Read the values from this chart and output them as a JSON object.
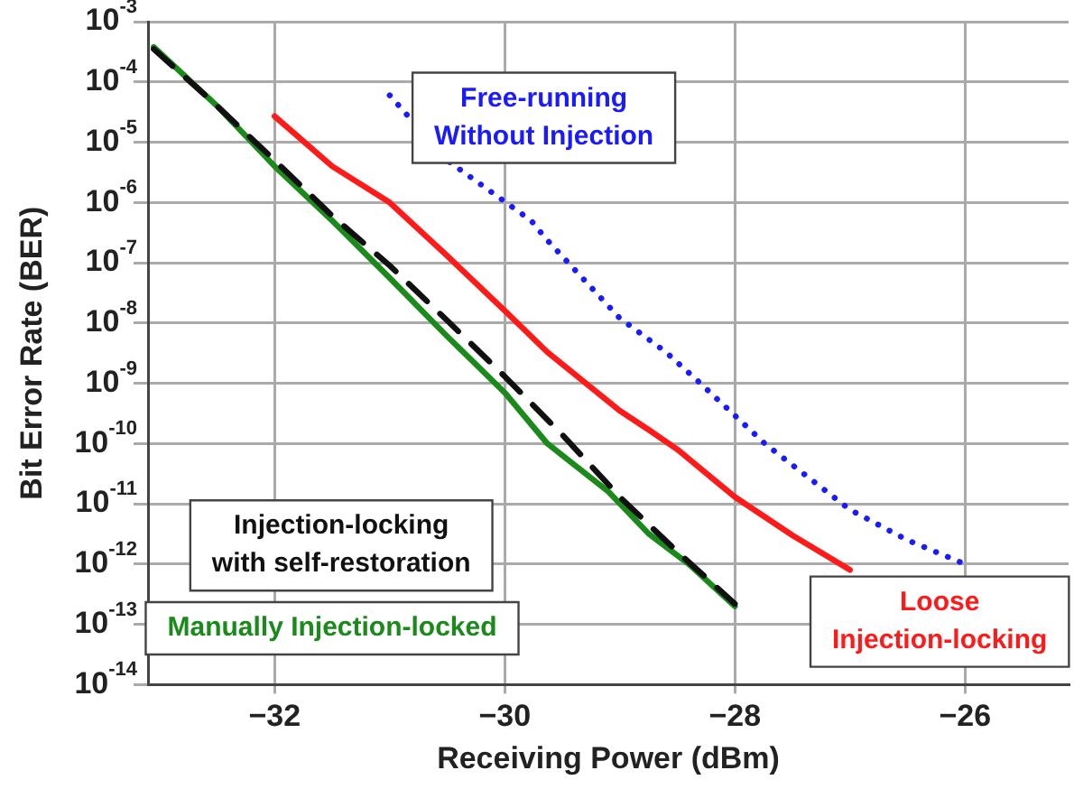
{
  "chart_data": {
    "type": "line",
    "xlabel": "Receiving Power (dBm)",
    "ylabel": "Bit Error Rate (BER)",
    "log": "y",
    "grid": true,
    "legend": false,
    "marker": "none",
    "xlim": [
      -33.1,
      -25.1
    ],
    "xticks": [
      -32,
      -30,
      -28,
      -26
    ],
    "ylim": [
      1e-14,
      0.001
    ],
    "yticks": [
      {
        "value": 1e-14,
        "label": "10$^{-14}$"
      },
      {
        "value": 1e-13,
        "label": "10$^{-13}$"
      },
      {
        "value": 1e-12,
        "label": "10$^{-12}$"
      },
      {
        "value": 1e-11,
        "label": "10$^{-11}$"
      },
      {
        "value": 1e-10,
        "label": "10$^{-10}$"
      },
      {
        "value": 1e-09,
        "label": "10$^{-9}$"
      },
      {
        "value": 1e-08,
        "label": "10$^{-8}$"
      },
      {
        "value": 1e-07,
        "label": "10$^{-7}$"
      },
      {
        "value": 1e-06,
        "label": "10$^{-6}$"
      },
      {
        "value": 1e-05,
        "label": "10$^{-5}$"
      },
      {
        "value": 0.0001,
        "label": "10$^{-4}$"
      },
      {
        "value": 0.001,
        "label": "10$^{-3}$"
      }
    ],
    "series": [
      {
        "name": "Free-running Without Injection",
        "color": "#1a1aff",
        "line_style": "dotted",
        "x": [
          -31,
          -30.5,
          -29.77,
          -29.65,
          -29,
          -28.6,
          -28.3,
          -27.74,
          -27,
          -26.5,
          -26
        ],
        "values": [
          6e-05,
          5e-06,
          5e-07,
          2.6e-07,
          1.2e-08,
          3.3e-09,
          1e-09,
          1e-10,
          8e-12,
          2.5e-12,
          1e-12
        ]
      },
      {
        "name": "Loose Injection-locking",
        "color": "#ff1a1a",
        "line_style": "solid",
        "x": [
          -32,
          -31.5,
          -31,
          -30.5,
          -30,
          -29.63,
          -29,
          -28.75,
          -28.5,
          -28,
          -27.5,
          -27
        ],
        "values": [
          2.7e-05,
          4e-06,
          1e-06,
          1.3e-07,
          1.6e-08,
          3.3e-09,
          3.5e-10,
          1.7e-10,
          8e-11,
          1.3e-11,
          3e-12,
          8e-13
        ]
      },
      {
        "name": "Injection-locking with self-restoration",
        "color": "#111111",
        "line_style": "dashed",
        "x": [
          -33.05,
          -32.5,
          -32,
          -31.5,
          -31,
          -30.5,
          -30,
          -29.5,
          -29,
          -28.5,
          -28
        ],
        "values": [
          0.00035,
          4e-05,
          5e-06,
          6e-07,
          9e-08,
          1.1e-08,
          1.3e-09,
          1.4e-10,
          1.3e-11,
          1.6e-12,
          2.2e-13
        ]
      },
      {
        "name": "Manually Injection-locked",
        "color": "#1a8a1a",
        "line_style": "solid",
        "x": [
          -33.05,
          -32.5,
          -32,
          -31.5,
          -31,
          -30.5,
          -30,
          -29.63,
          -29.1,
          -28.75,
          -28.4,
          -28
        ],
        "values": [
          0.00038,
          4e-05,
          4e-06,
          5e-07,
          5.6e-08,
          6e-09,
          7e-10,
          1e-10,
          1.6e-11,
          3.2e-12,
          1e-12,
          2e-13
        ]
      }
    ]
  }
}
